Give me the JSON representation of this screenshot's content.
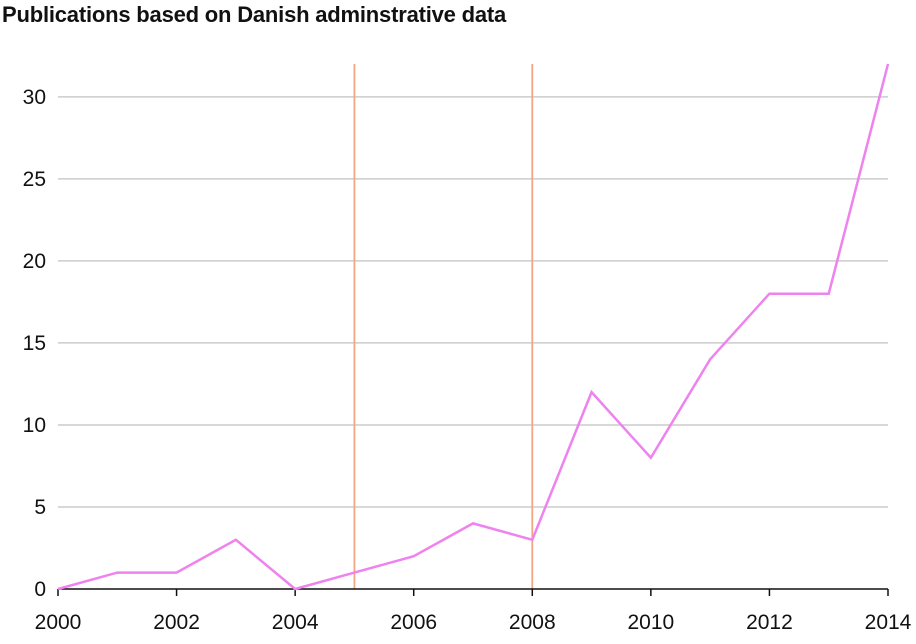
{
  "chart_data": {
    "type": "line",
    "title": "Publications based on Danish adminstrative data",
    "xlabel": "",
    "ylabel": "",
    "x": [
      2000,
      2001,
      2002,
      2003,
      2004,
      2005,
      2006,
      2007,
      2008,
      2009,
      2010,
      2011,
      2012,
      2013,
      2014
    ],
    "series": [
      {
        "values": [
          0,
          1,
          1,
          3,
          0,
          1,
          2,
          4,
          3,
          12,
          8,
          14,
          18,
          18,
          32
        ],
        "color": "#ee82ee"
      }
    ],
    "xlim": [
      2000,
      2014
    ],
    "ylim": [
      0,
      32
    ],
    "xticks": [
      2000,
      2002,
      2004,
      2006,
      2008,
      2010,
      2012,
      2014
    ],
    "yticks": [
      0,
      5,
      10,
      15,
      20,
      25,
      30
    ],
    "reference_lines_x": [
      2005,
      2008
    ],
    "reference_line_color": "#f4a582",
    "grid": "horizontal",
    "gridline_color": "#cccccc"
  }
}
